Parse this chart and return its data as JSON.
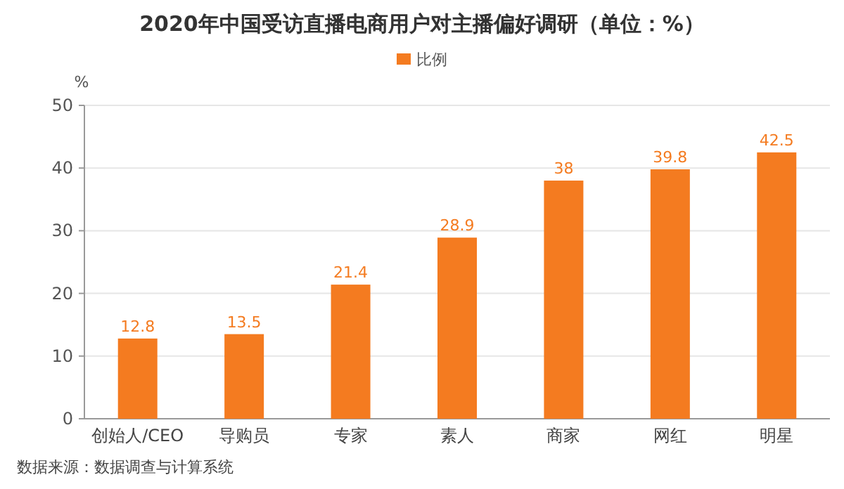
{
  "chart_data": {
    "type": "bar",
    "title": "2020年中国受访直播电商用户对主播偏好调研（单位：%）",
    "ylabel": "%",
    "categories": [
      "创始人/CEO",
      "导购员",
      "专家",
      "素人",
      "商家",
      "网红",
      "明星"
    ],
    "series": [
      {
        "name": "比例",
        "color": "#f47b20",
        "values": [
          12.8,
          13.5,
          21.4,
          28.9,
          38,
          39.8,
          42.5
        ]
      }
    ],
    "ylim": [
      0,
      50
    ],
    "yticks": [
      0,
      10,
      20,
      30,
      40,
      50
    ],
    "grid": "y",
    "legend": "top",
    "data_labels": true,
    "annotations": [
      "数据来源：数据调查与计算系统"
    ]
  }
}
